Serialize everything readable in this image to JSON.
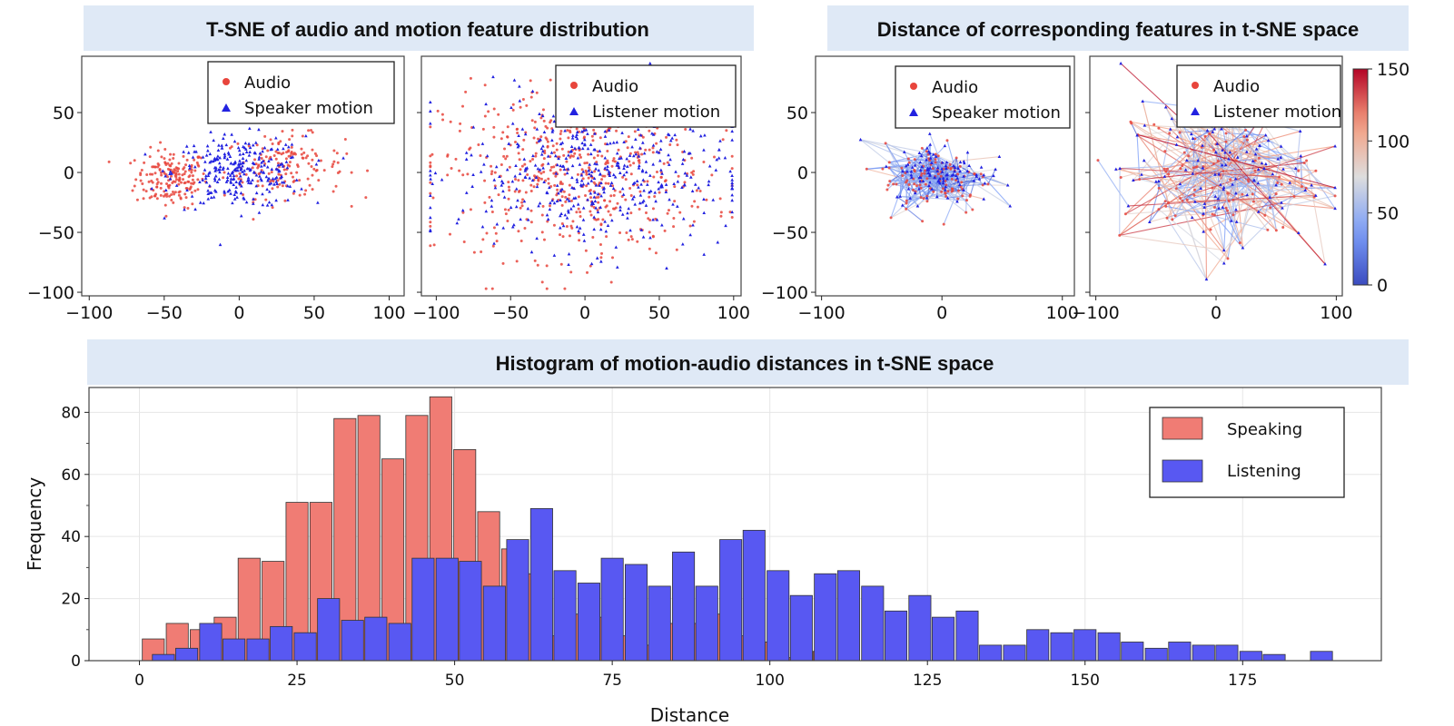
{
  "titles": {
    "tsne": "T-SNE of audio and motion feature distribution",
    "distance": "Distance of corresponding features in t-SNE space",
    "histogram": "Histogram of motion-audio distances in t-SNE space"
  },
  "colors": {
    "banner": "#dfe9f6",
    "audio": "#e8453c",
    "motion": "#2222e0",
    "speaking": "#f07c74",
    "listening": "#5858f2"
  },
  "chart_data": [
    {
      "type": "scatter",
      "title": "",
      "xlim": [
        -105,
        110
      ],
      "ylim": [
        -103,
        97
      ],
      "xticks": [
        "-100",
        "-50",
        "0",
        "50",
        "100"
      ],
      "yticks": [
        "50",
        "0",
        "-50",
        "-100"
      ],
      "legend": [
        "Audio",
        "Speaker motion"
      ],
      "legend_position": "top-right",
      "series": [
        {
          "name": "Audio",
          "marker": "circle",
          "clusters": [
            {
              "cx": -45,
              "cy": -5,
              "sx": 12,
              "sy": 12,
              "n": 180
            },
            {
              "cx": 30,
              "cy": 5,
              "sx": 20,
              "sy": 13,
              "n": 160
            }
          ]
        },
        {
          "name": "Speaker motion",
          "marker": "triangle",
          "clusters": [
            {
              "cx": 0,
              "cy": 0,
              "sx": 22,
              "sy": 15,
              "n": 280
            }
          ]
        }
      ]
    },
    {
      "type": "scatter",
      "title": "",
      "xlim": [
        -110,
        105
      ],
      "ylim": [
        -103,
        97
      ],
      "xticks": [
        "-100",
        "-50",
        "0",
        "50",
        "100"
      ],
      "legend": [
        "Audio",
        "Listener motion"
      ],
      "legend_position": "top-right",
      "series": [
        {
          "name": "Audio",
          "marker": "circle",
          "clusters": [
            {
              "cx": -5,
              "cy": 0,
              "sx": 45,
              "sy": 35,
              "n": 560
            }
          ]
        },
        {
          "name": "Listener motion",
          "marker": "triangle",
          "clusters": [
            {
              "cx": 5,
              "cy": 0,
              "sx": 45,
              "sy": 32,
              "n": 480
            }
          ]
        }
      ]
    },
    {
      "type": "scatter",
      "title": "",
      "xlim": [
        -105,
        110
      ],
      "ylim": [
        -103,
        97
      ],
      "xticks": [
        "-100",
        "0",
        "100"
      ],
      "yticks": [
        "50",
        "0",
        "-50",
        "-100"
      ],
      "legend": [
        "Audio",
        "Speaker motion"
      ],
      "legend_position": "top-right",
      "series": [
        {
          "name": "Audio",
          "marker": "circle",
          "clusters": [
            {
              "cx": -5,
              "cy": -5,
              "sx": 22,
              "sy": 15,
              "n": 110
            }
          ]
        },
        {
          "name": "Speaker motion",
          "marker": "triangle",
          "clusters": [
            {
              "cx": 0,
              "cy": 0,
              "sx": 20,
              "sy": 13,
              "n": 110
            }
          ]
        }
      ],
      "lines": {
        "count": 220,
        "distance_range": [
          0,
          60
        ]
      }
    },
    {
      "type": "scatter",
      "title": "",
      "xlim": [
        -105,
        105
      ],
      "ylim": [
        -103,
        97
      ],
      "xticks": [
        "-100",
        "0",
        "100"
      ],
      "legend": [
        "Audio",
        "Listener motion"
      ],
      "legend_position": "top-right",
      "series": [
        {
          "name": "Audio",
          "marker": "circle",
          "clusters": [
            {
              "cx": 0,
              "cy": 0,
              "sx": 40,
              "sy": 32,
              "n": 110
            }
          ]
        },
        {
          "name": "Listener motion",
          "marker": "triangle",
          "clusters": [
            {
              "cx": 0,
              "cy": 0,
              "sx": 40,
              "sy": 30,
              "n": 110
            }
          ]
        }
      ],
      "lines": {
        "count": 260,
        "distance_range": [
          0,
          150
        ]
      }
    },
    {
      "type": "colorbar",
      "range": [
        0,
        150
      ],
      "ticks": [
        "150",
        "100",
        "50",
        "0"
      ],
      "colormap": "coolwarm"
    },
    {
      "type": "bar",
      "title": "",
      "xlabel": "Distance",
      "ylabel": "Frequency",
      "xlim": [
        -8,
        197
      ],
      "ylim": [
        0,
        88
      ],
      "xticks": [
        "0",
        "25",
        "50",
        "75",
        "100",
        "125",
        "150",
        "175"
      ],
      "yticks": [
        "0",
        "20",
        "40",
        "60",
        "80"
      ],
      "grid": true,
      "legend_position": "top-right",
      "bin_width": 3.8,
      "series": [
        {
          "name": "Speaking",
          "x": [
            2.2,
            6.0,
            9.8,
            13.6,
            17.4,
            21.2,
            25.0,
            28.8,
            32.6,
            36.4,
            40.2,
            44.0,
            47.8,
            51.6,
            55.4,
            59.2,
            63.0,
            66.8,
            70.6,
            74.4,
            78.2,
            82.0,
            85.8,
            89.6,
            93.4,
            97.2,
            101.0,
            104.8,
            108.6
          ],
          "values": [
            7,
            12,
            10,
            14,
            33,
            32,
            51,
            51,
            78,
            79,
            65,
            79,
            85,
            68,
            48,
            36,
            28,
            8,
            15,
            14,
            8,
            5,
            12,
            12,
            15,
            8,
            6,
            1,
            3
          ]
        },
        {
          "name": "Listening",
          "x": [
            3.8,
            7.5,
            11.3,
            15.0,
            18.8,
            22.5,
            26.3,
            30.0,
            33.8,
            37.5,
            41.3,
            45.0,
            48.8,
            52.5,
            56.3,
            60.0,
            63.8,
            67.5,
            71.3,
            75.0,
            78.8,
            82.5,
            86.3,
            90.0,
            93.8,
            97.5,
            101.3,
            105.0,
            108.8,
            112.5,
            116.3,
            120.0,
            123.8,
            127.5,
            131.3,
            135.0,
            138.8,
            142.5,
            146.3,
            150.0,
            153.8,
            157.5,
            161.3,
            165.0,
            168.8,
            172.5,
            176.3,
            180.0,
            183.8,
            187.5
          ],
          "values": [
            2,
            4,
            12,
            7,
            7,
            11,
            9,
            20,
            13,
            14,
            12,
            33,
            33,
            32,
            24,
            39,
            49,
            29,
            25,
            33,
            31,
            24,
            35,
            24,
            39,
            42,
            29,
            21,
            28,
            29,
            24,
            16,
            21,
            14,
            16,
            5,
            5,
            10,
            9,
            10,
            9,
            6,
            4,
            6,
            5,
            5,
            3,
            2,
            0,
            3
          ]
        }
      ]
    }
  ]
}
